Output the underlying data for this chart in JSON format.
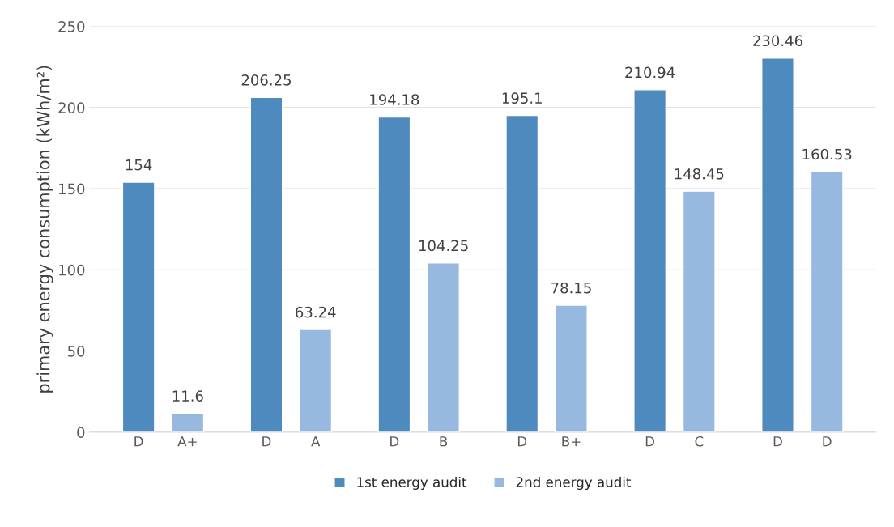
{
  "chart_data": {
    "type": "bar",
    "ylabel": "primary energy consumption (kWh/m²)",
    "categories": [
      "D",
      "A+",
      "D",
      "A",
      "D",
      "B",
      "D",
      "B+",
      "D",
      "C",
      "D",
      "D"
    ],
    "series": [
      {
        "name": "1st energy audit",
        "color": "#4f8abf",
        "values": [
          154,
          null,
          206.25,
          null,
          194.18,
          null,
          195.1,
          null,
          210.94,
          null,
          230.46,
          null
        ]
      },
      {
        "name": "2nd energy audit",
        "color": "#97b9e0",
        "values": [
          null,
          11.6,
          null,
          63.24,
          null,
          104.25,
          null,
          78.15,
          null,
          148.45,
          null,
          160.53
        ]
      }
    ],
    "ylim": [
      0,
      250
    ],
    "yticks": [
      0,
      50,
      100,
      150,
      200,
      250
    ],
    "grid": "y",
    "legend": "bottom",
    "data_labels": true
  }
}
